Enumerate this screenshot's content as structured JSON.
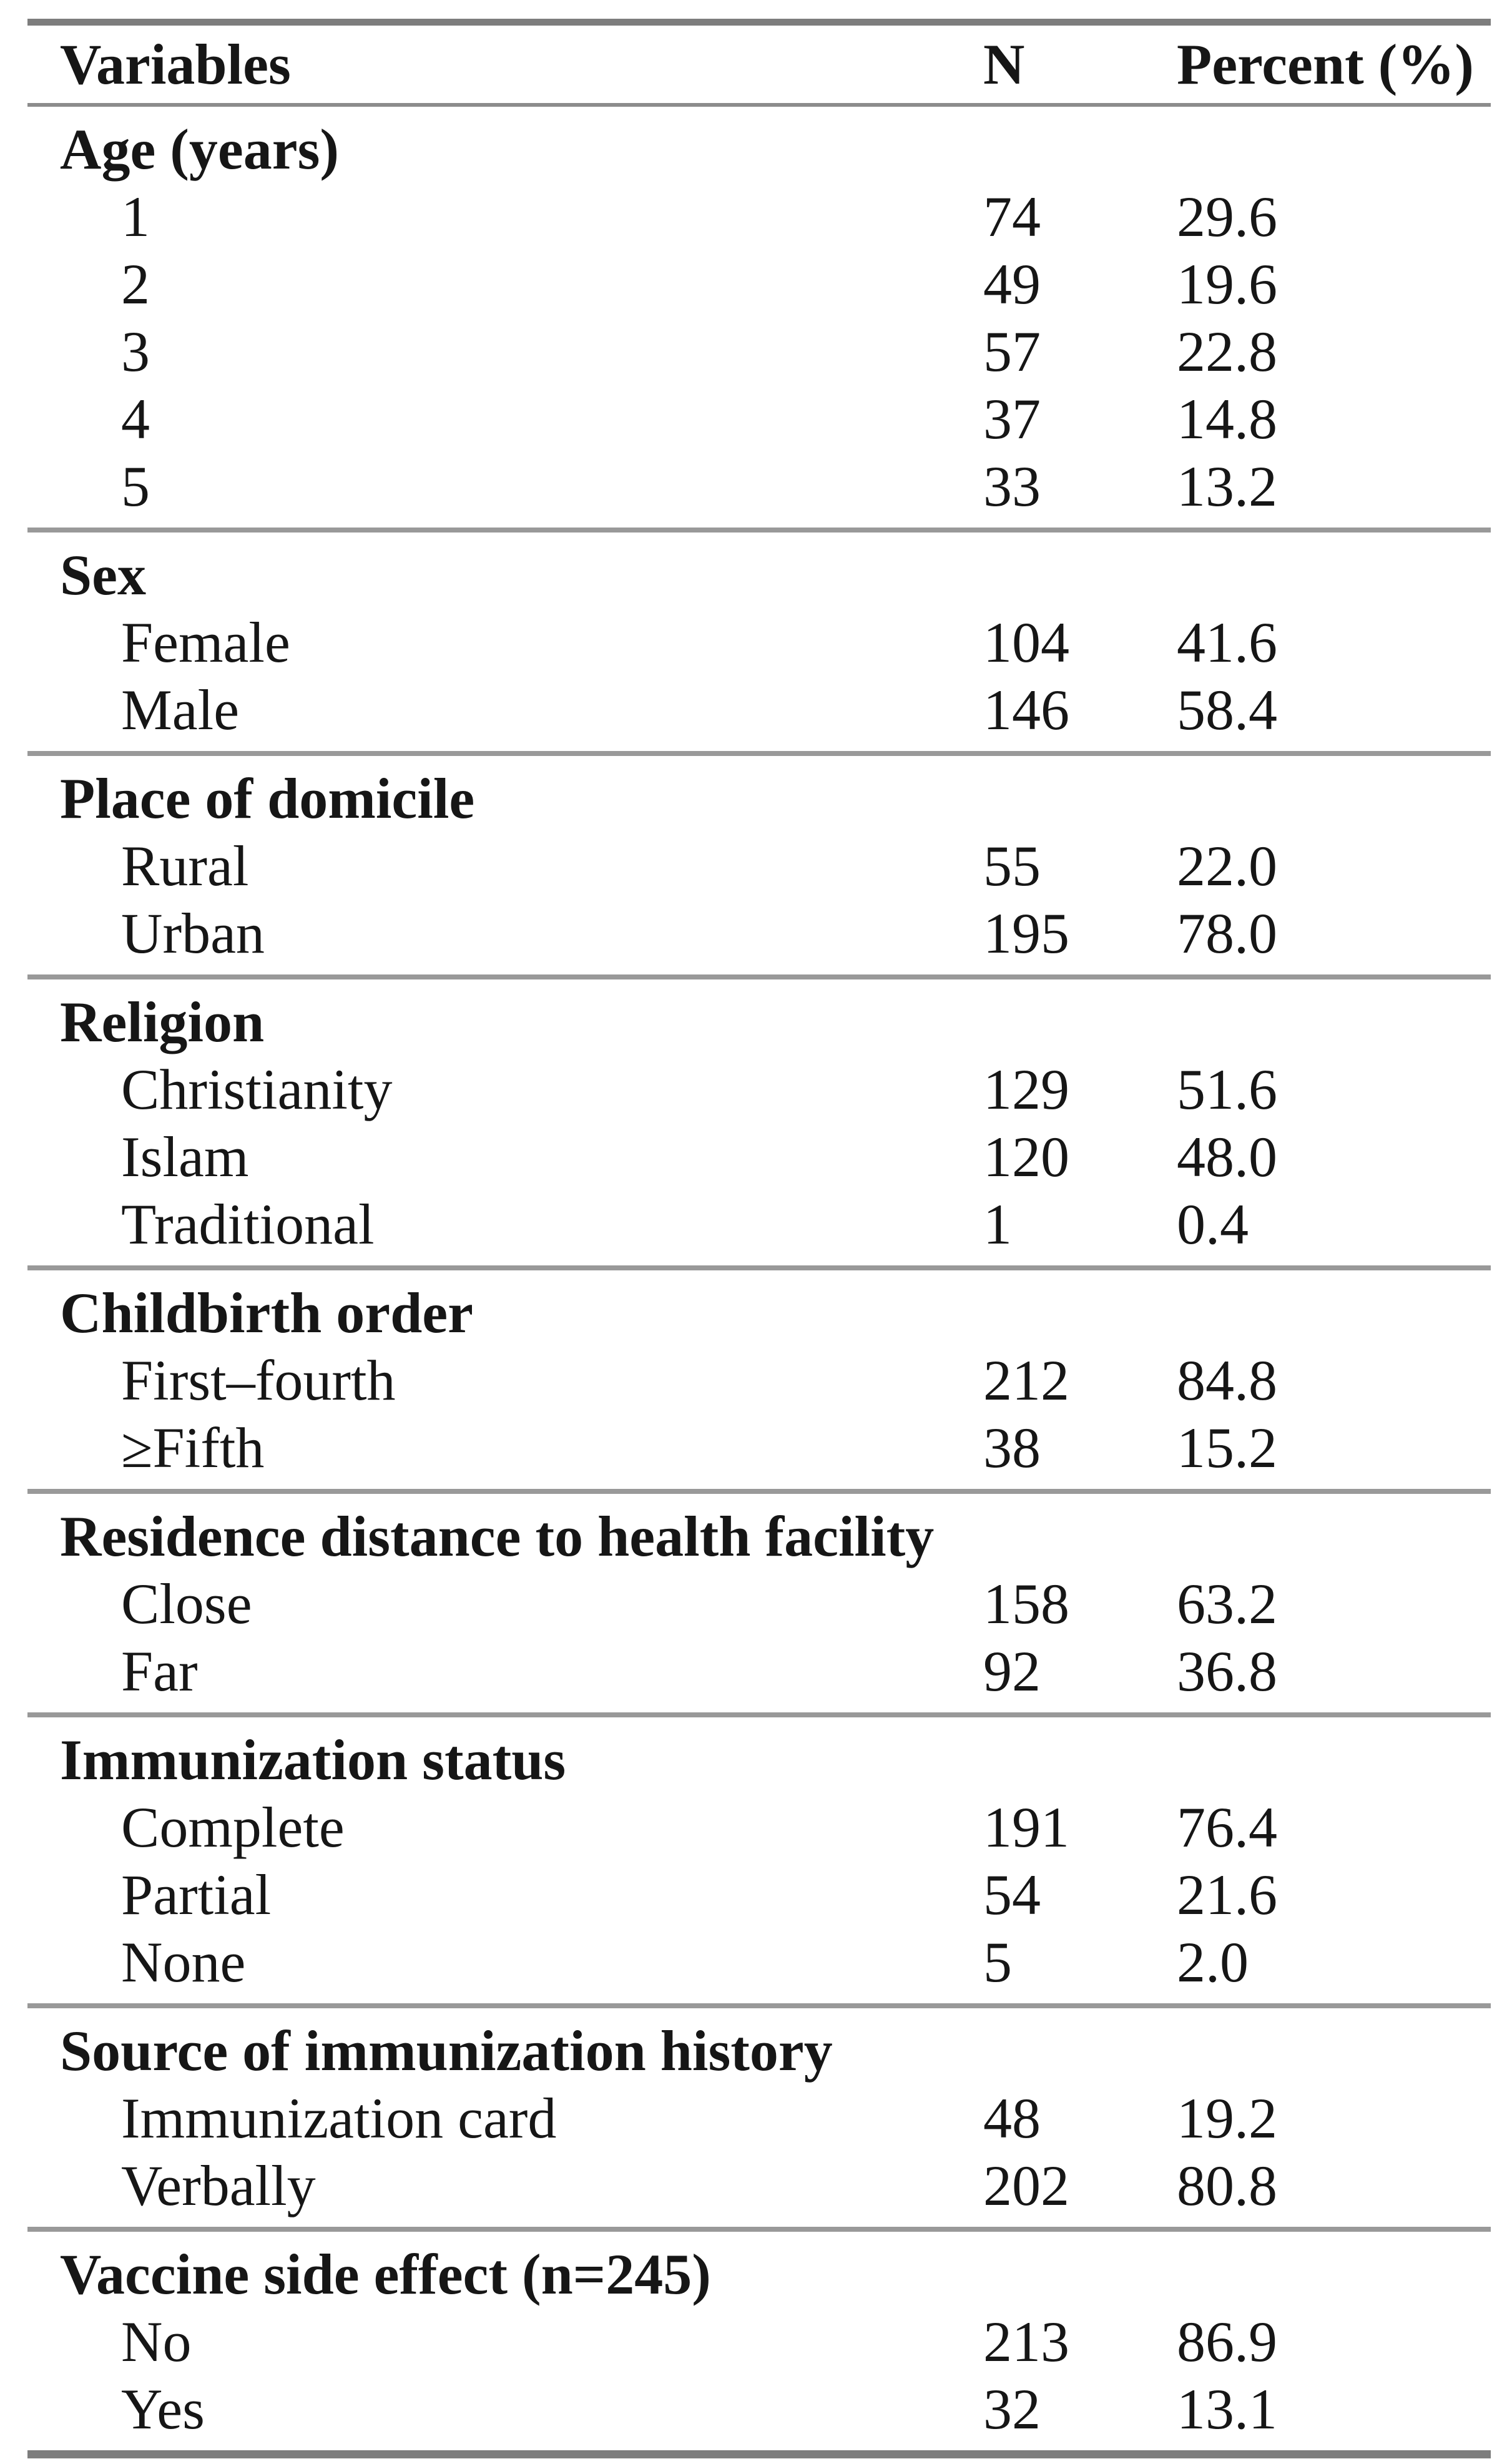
{
  "table": {
    "columns": [
      "Variables",
      "N",
      "Percent (%)"
    ],
    "sections": [
      {
        "label": "Age (years)",
        "rows": [
          {
            "label": "1",
            "n": "74",
            "percent": "29.6"
          },
          {
            "label": "2",
            "n": "49",
            "percent": "19.6"
          },
          {
            "label": "3",
            "n": "57",
            "percent": "22.8"
          },
          {
            "label": "4",
            "n": "37",
            "percent": "14.8"
          },
          {
            "label": "5",
            "n": "33",
            "percent": "13.2"
          }
        ]
      },
      {
        "label": "Sex",
        "rows": [
          {
            "label": "Female",
            "n": "104",
            "percent": "41.6"
          },
          {
            "label": "Male",
            "n": "146",
            "percent": "58.4"
          }
        ]
      },
      {
        "label": "Place of domicile",
        "rows": [
          {
            "label": "Rural",
            "n": "55",
            "percent": "22.0"
          },
          {
            "label": "Urban",
            "n": "195",
            "percent": "78.0"
          }
        ]
      },
      {
        "label": "Religion",
        "rows": [
          {
            "label": "Christianity",
            "n": "129",
            "percent": "51.6"
          },
          {
            "label": "Islam",
            "n": "120",
            "percent": "48.0"
          },
          {
            "label": "Traditional",
            "n": "1",
            "percent": "0.4"
          }
        ]
      },
      {
        "label": "Childbirth order",
        "rows": [
          {
            "label": "First–fourth",
            "n": "212",
            "percent": "84.8"
          },
          {
            "label": "≥Fifth",
            "n": "38",
            "percent": "15.2"
          }
        ]
      },
      {
        "label": "Residence distance to health facility",
        "rows": [
          {
            "label": "Close",
            "n": "158",
            "percent": "63.2"
          },
          {
            "label": "Far",
            "n": "92",
            "percent": "36.8"
          }
        ]
      },
      {
        "label": "Immunization status",
        "rows": [
          {
            "label": "Complete",
            "n": "191",
            "percent": "76.4"
          },
          {
            "label": "Partial",
            "n": "54",
            "percent": "21.6"
          },
          {
            "label": "None",
            "n": "5",
            "percent": "2.0"
          }
        ]
      },
      {
        "label": "Source of immunization history",
        "rows": [
          {
            "label": "Immunization card",
            "n": "48",
            "percent": "19.2"
          },
          {
            "label": "Verbally",
            "n": "202",
            "percent": "80.8"
          }
        ]
      },
      {
        "label": "Vaccine side effect (n=245)",
        "rows": [
          {
            "label": "No",
            "n": "213",
            "percent": "86.9"
          },
          {
            "label": "Yes",
            "n": "32",
            "percent": "13.1"
          }
        ]
      }
    ]
  }
}
